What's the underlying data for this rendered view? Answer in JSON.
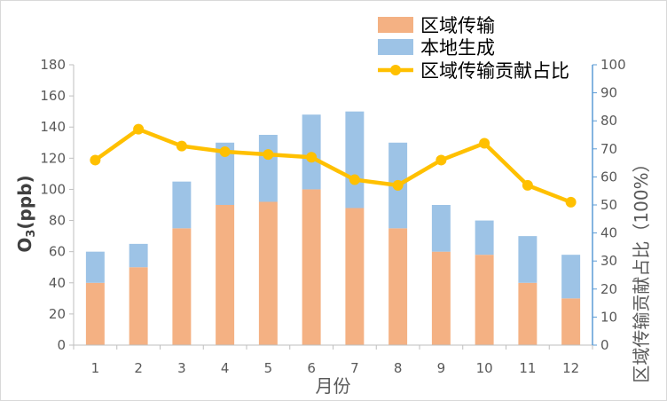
{
  "chart_data": {
    "type": "bar",
    "stacked": true,
    "categories": [
      "1",
      "2",
      "3",
      "4",
      "5",
      "6",
      "7",
      "8",
      "9",
      "10",
      "11",
      "12"
    ],
    "series": [
      {
        "name": "区域传输",
        "kind": "bar",
        "axis": "left",
        "color": "#F4B183",
        "values": [
          40,
          50,
          75,
          90,
          92,
          100,
          88,
          75,
          60,
          58,
          40,
          30
        ]
      },
      {
        "name": "本地生成",
        "kind": "bar",
        "axis": "left",
        "color": "#9DC3E6",
        "values": [
          20,
          15,
          30,
          40,
          43,
          48,
          62,
          55,
          30,
          22,
          30,
          28
        ]
      },
      {
        "name": "区域传输贡献占比",
        "kind": "line",
        "axis": "right",
        "color": "#FFC000",
        "values": [
          66,
          77,
          71,
          69,
          68,
          67,
          59,
          57,
          66,
          72,
          57,
          51
        ]
      }
    ],
    "xlabel": "月份",
    "ylabel_main": "O",
    "ylabel_sub": "3",
    "ylabel_unit": "(ppb)",
    "y2label": "区域传输贡献占比（100%）",
    "ylim": [
      0,
      180
    ],
    "y_ticks": [
      0,
      20,
      40,
      60,
      80,
      100,
      120,
      140,
      160,
      180
    ],
    "y2lim": [
      0,
      100
    ],
    "y2_ticks": [
      0,
      10,
      20,
      30,
      40,
      50,
      60,
      70,
      80,
      90,
      100
    ],
    "grid": false,
    "legend_position": "top-right"
  }
}
